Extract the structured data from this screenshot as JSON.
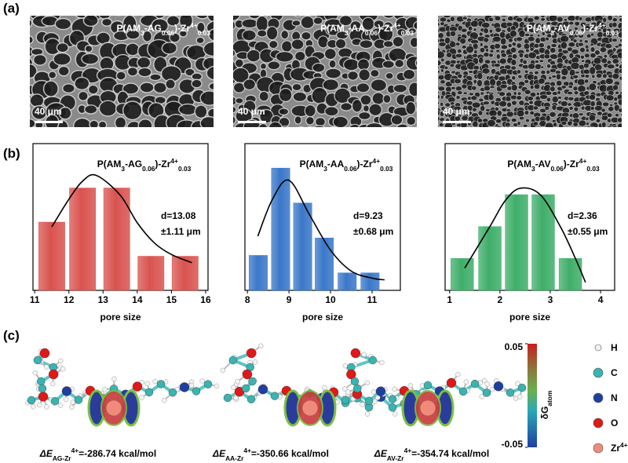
{
  "panel_labels": [
    "(a)",
    "(b)",
    "(c)"
  ],
  "sem_images": [
    {
      "label": [
        "P(AM",
        "3",
        "-AG",
        "0.06",
        ")-Zr",
        "4+",
        "0.03"
      ],
      "scale_bar": "40 μm"
    },
    {
      "label": [
        "P(AM",
        "3",
        "-AA",
        "0.06",
        ")-Zr",
        "4+",
        "0.03"
      ],
      "scale_bar": "40 μm"
    },
    {
      "label": [
        "P(AM",
        "3",
        "-AV",
        "0.06",
        ")-Zr",
        "4+",
        "0.03"
      ],
      "scale_bar": "40 μm"
    }
  ],
  "chart_data": [
    {
      "type": "bar",
      "title": [
        "P(AM",
        "3",
        "-AG",
        "0.06",
        ")-Zr",
        "4+",
        "0.03"
      ],
      "color": "#d9534f",
      "x": [
        11.5,
        12.4,
        13.4,
        14.4,
        15.4
      ],
      "values": [
        2,
        3,
        3,
        1,
        1
      ],
      "xlim": [
        10.95,
        16.07
      ],
      "xticks": [
        11,
        12,
        13,
        14,
        15,
        16
      ],
      "ylim": [
        0,
        4.3
      ],
      "fit": {
        "x": [
          11.5,
          12,
          12.4,
          12.8,
          13.5,
          14,
          14.5,
          15,
          15.6
        ],
        "y": [
          1.86,
          2.67,
          3.2,
          3.37,
          2.79,
          1.98,
          1.39,
          1.05,
          0.81
        ]
      },
      "annotations": [
        "d=13.08",
        "±1.11 μm"
      ],
      "x_label": "pore size"
    },
    {
      "type": "bar",
      "title": [
        "P(AM",
        "3",
        "-AA",
        "0.06",
        ")-Zr",
        "4+",
        "0.03"
      ],
      "color": "#3a78c9",
      "x": [
        8.26,
        8.8,
        9.33,
        9.85,
        10.4,
        10.95
      ],
      "values": [
        2,
        7,
        5,
        3,
        1,
        1
      ],
      "xlim": [
        7.94,
        11.68
      ],
      "xticks": [
        8,
        9,
        10,
        11
      ],
      "ylim": [
        0,
        8.4
      ],
      "fit": {
        "x": [
          8.25,
          8.6,
          9.0,
          9.5,
          10,
          10.5,
          11,
          11.3
        ],
        "y": [
          3.1,
          5.2,
          6.3,
          4.3,
          2.3,
          1.1,
          0.7,
          0.6
        ]
      },
      "annotations": [
        "d=9.23",
        "±0.68 μm"
      ],
      "x_label": "pore size"
    },
    {
      "type": "bar",
      "title": [
        "P(AM",
        "3",
        "-AV",
        "0.06",
        ")-Zr",
        "4+",
        "0.03"
      ],
      "color": "#3fae6a",
      "x": [
        1.25,
        1.8,
        2.33,
        2.86,
        3.4
      ],
      "values": [
        1,
        2,
        3,
        3,
        1
      ],
      "xlim": [
        0.91,
        4.28
      ],
      "xticks": [
        1,
        2,
        3,
        4
      ],
      "ylim": [
        0,
        4.6
      ],
      "fit": {
        "x": [
          1.3,
          1.8,
          2.1,
          2.4,
          2.8,
          3.2,
          3.5,
          3.7
        ],
        "y": [
          0.7,
          2.0,
          2.8,
          3.2,
          3.0,
          2.0,
          1.0,
          0.25
        ]
      },
      "annotations": [
        "d=2.36",
        "±0.55 μm"
      ],
      "x_label": "pore size"
    }
  ],
  "dft": {
    "energies": [
      [
        "ΔE",
        "AG-Zr",
        "4+",
        "=-286.74 kcal/mol"
      ],
      [
        "ΔE",
        "AA-Zr",
        "4+",
        "=-350.66 kcal/mol"
      ],
      [
        "ΔE",
        "AV-Zr",
        "4+",
        "=-354.74 kcal/mol"
      ]
    ],
    "colorbar": {
      "lim": [
        -0.05,
        0.05
      ],
      "ticks": [
        -0.05,
        0.05
      ],
      "label": [
        "δG",
        "atom"
      ]
    },
    "legend": [
      {
        "label": [
          "H"
        ],
        "color": "#f2f2f2"
      },
      {
        "label": [
          "C"
        ],
        "color": "#3bb3b0"
      },
      {
        "label": [
          "N"
        ],
        "color": "#1f3fa0"
      },
      {
        "label": [
          "O"
        ],
        "color": "#e01818"
      },
      {
        "label": [
          "Zr",
          "4+"
        ],
        "color": "#f08a7a"
      }
    ]
  }
}
